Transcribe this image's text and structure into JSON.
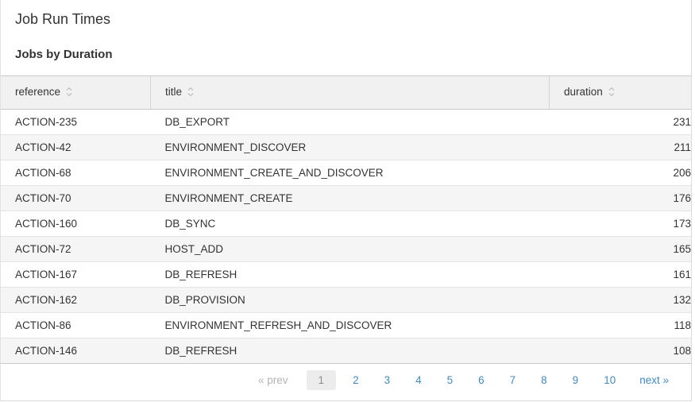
{
  "page": {
    "title": "Job Run Times",
    "subtitle": "Jobs by Duration"
  },
  "table": {
    "columns": [
      {
        "key": "reference",
        "label": "reference",
        "align": "left",
        "sortable": true
      },
      {
        "key": "title",
        "label": "title",
        "align": "left",
        "sortable": true
      },
      {
        "key": "duration",
        "label": "duration",
        "align": "right",
        "sortable": true
      }
    ],
    "rows": [
      {
        "reference": "ACTION-235",
        "title": "DB_EXPORT",
        "duration": "231"
      },
      {
        "reference": "ACTION-42",
        "title": "ENVIRONMENT_DISCOVER",
        "duration": "211"
      },
      {
        "reference": "ACTION-68",
        "title": "ENVIRONMENT_CREATE_AND_DISCOVER",
        "duration": "206"
      },
      {
        "reference": "ACTION-70",
        "title": "ENVIRONMENT_CREATE",
        "duration": "176"
      },
      {
        "reference": "ACTION-160",
        "title": "DB_SYNC",
        "duration": "173"
      },
      {
        "reference": "ACTION-72",
        "title": "HOST_ADD",
        "duration": "165"
      },
      {
        "reference": "ACTION-167",
        "title": "DB_REFRESH",
        "duration": "161"
      },
      {
        "reference": "ACTION-162",
        "title": "DB_PROVISION",
        "duration": "132"
      },
      {
        "reference": "ACTION-86",
        "title": "ENVIRONMENT_REFRESH_AND_DISCOVER",
        "duration": "118"
      },
      {
        "reference": "ACTION-146",
        "title": "DB_REFRESH",
        "duration": "108"
      }
    ]
  },
  "pagination": {
    "prev_label": "« prev",
    "next_label": "next »",
    "current_page": "1",
    "pages": [
      "1",
      "2",
      "3",
      "4",
      "5",
      "6",
      "7",
      "8",
      "9",
      "10"
    ]
  },
  "icons": {
    "sort_icon": "sort-both-chevrons"
  },
  "colors": {
    "text": "#333333",
    "link_blue": "#3e8bc6",
    "muted": "#b4b4b4",
    "current_page_bg": "#ececec",
    "current_page_text": "#8e8e8e",
    "header_bg": "#f1f1f1",
    "stripe_bg": "#f5f5f5",
    "border_light": "#e3e3e3",
    "border_mid": "#dcdcdc",
    "border_dark": "#c9c9c9",
    "border_sep": "#d6d6d6",
    "sort_icon": "#bdbdbd"
  }
}
